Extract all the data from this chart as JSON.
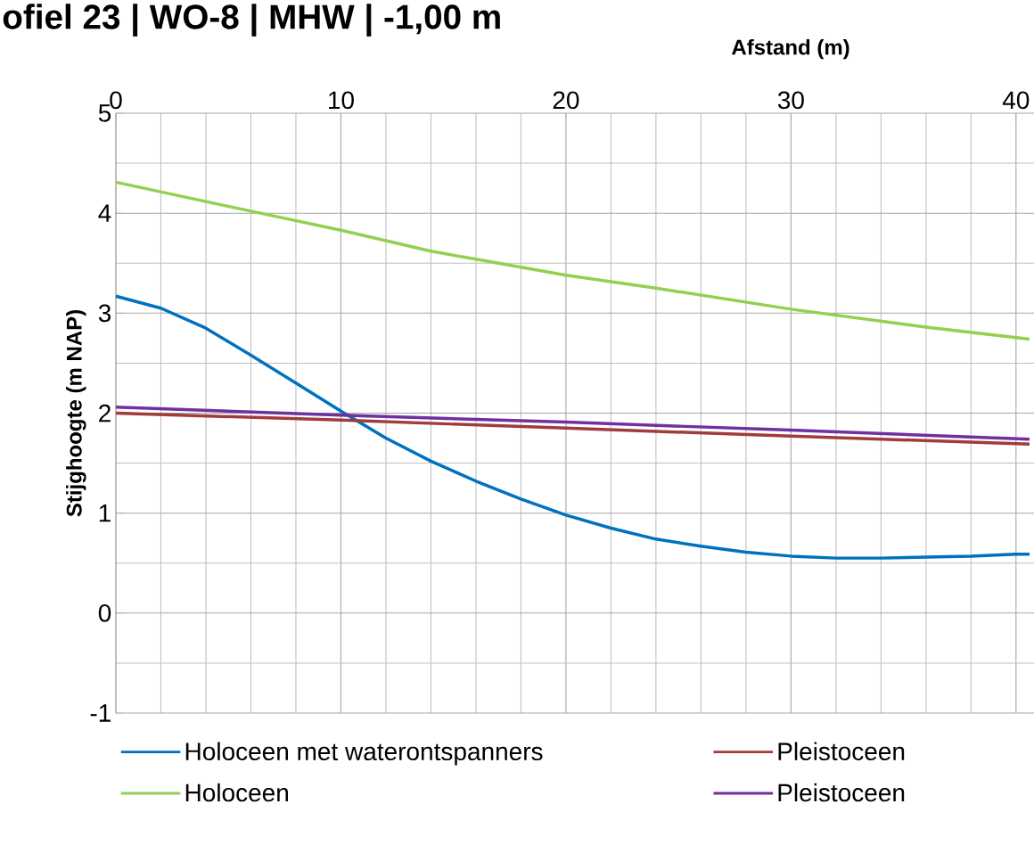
{
  "chart_data": {
    "type": "line",
    "title": "ofiel 23 | WO-8 | MHW | -1,00 m",
    "xlabel": "Afstand (m)",
    "ylabel": "Stijghoogte (m NAP)",
    "xlim": [
      0,
      40.8
    ],
    "ylim": [
      -1,
      5
    ],
    "xticks": [
      0,
      10,
      20,
      30,
      40
    ],
    "yticks": [
      -1,
      0,
      1,
      2,
      3,
      4,
      5
    ],
    "grid": true,
    "legend": "bottom",
    "line_style": "solid",
    "marker": "none",
    "series": [
      {
        "name": "Holoceen met waterontspanners",
        "color": "#0070c0",
        "x": [
          0,
          2,
          4,
          6,
          8,
          10,
          12,
          14,
          16,
          18,
          20,
          22,
          24,
          26,
          28,
          30,
          32,
          34,
          36,
          38,
          40,
          40.6
        ],
        "values": [
          3.17,
          3.05,
          2.85,
          2.58,
          2.3,
          2.02,
          1.75,
          1.52,
          1.32,
          1.14,
          0.98,
          0.85,
          0.74,
          0.67,
          0.61,
          0.57,
          0.55,
          0.55,
          0.56,
          0.57,
          0.59,
          0.59
        ]
      },
      {
        "name": "Holoceen",
        "color": "#92d050",
        "x": [
          0,
          6,
          10,
          14,
          16,
          20,
          24,
          26,
          30,
          36,
          40.6
        ],
        "values": [
          4.31,
          4.02,
          3.83,
          3.62,
          3.54,
          3.38,
          3.25,
          3.18,
          3.04,
          2.86,
          2.74
        ]
      },
      {
        "name": "Pleistoceen",
        "color": "#a03c3c",
        "x": [
          0,
          10,
          20,
          30,
          40.6
        ],
        "values": [
          2.0,
          1.93,
          1.85,
          1.77,
          1.69
        ]
      },
      {
        "name": "Pleistoceen",
        "color": "#7030a0",
        "x": [
          0,
          10,
          20,
          30,
          40.6
        ],
        "values": [
          2.06,
          1.98,
          1.91,
          1.83,
          1.74
        ]
      }
    ]
  }
}
